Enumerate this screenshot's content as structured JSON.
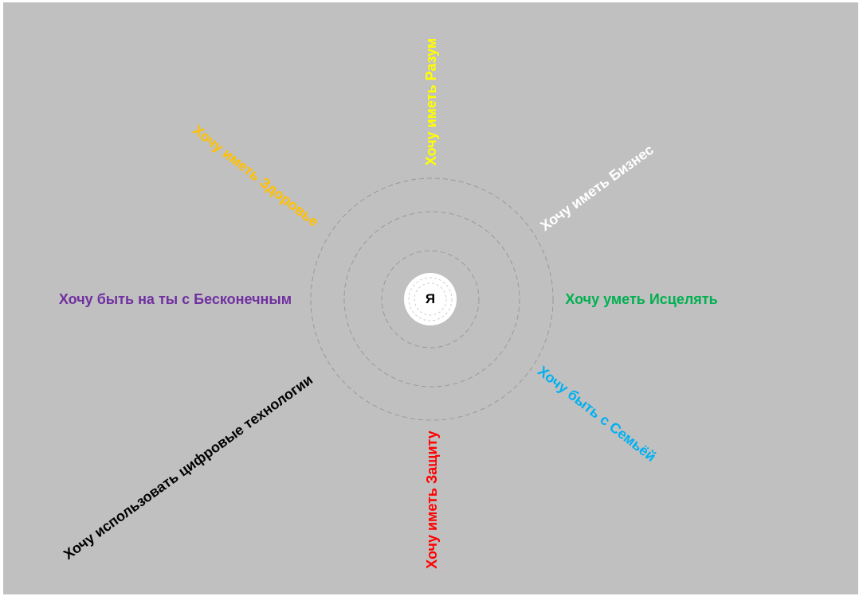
{
  "center": {
    "label": "Я"
  },
  "wishes": [
    {
      "id": "razum",
      "text": "Хочу иметь Разум",
      "color": "#ffff00"
    },
    {
      "id": "biznes",
      "text": "Хочу иметь Бизнес",
      "color": "#ffffff"
    },
    {
      "id": "istselyat",
      "text": "Хочу уметь Исцелять",
      "color": "#00b050"
    },
    {
      "id": "semya",
      "text": "Хочу быть с Семьёй",
      "color": "#00b0f0"
    },
    {
      "id": "zashchita",
      "text": "Хочу иметь Защиту",
      "color": "#ff0000"
    },
    {
      "id": "tsifrovye",
      "text": "Хочу использовать цифровые технологии",
      "color": "#000000"
    },
    {
      "id": "beskonechnyi",
      "text": "Хочу быть на ты с Бесконечным",
      "color": "#7030a0"
    },
    {
      "id": "zdorove",
      "text": "Хочу иметь Здоровье",
      "color": "#ffc000"
    }
  ]
}
